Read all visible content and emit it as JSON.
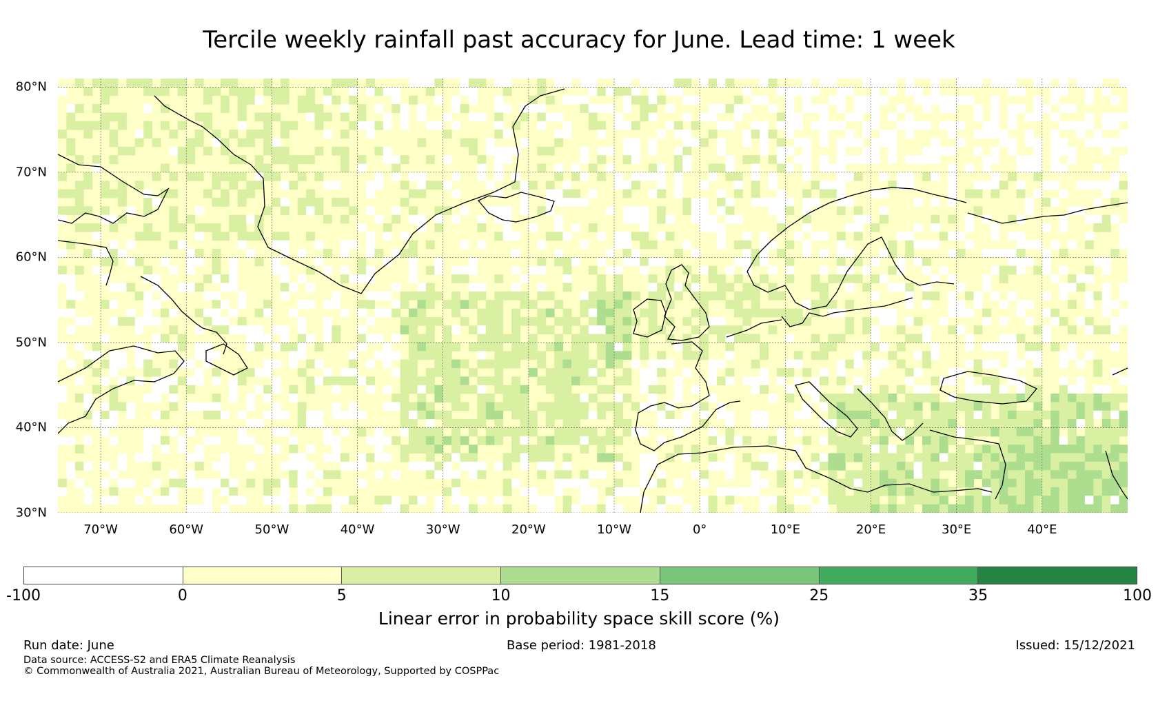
{
  "title": "Tercile weekly rainfall past accuracy for June. Lead time: 1 week",
  "map": {
    "lon_range": [
      -75,
      50
    ],
    "lat_range": [
      30,
      81
    ],
    "lat_labels": [
      "80°N",
      "70°N",
      "60°N",
      "50°N",
      "40°N",
      "30°N"
    ],
    "lat_values": [
      80,
      70,
      60,
      50,
      40,
      30
    ],
    "lon_labels": [
      "70°W",
      "60°W",
      "50°W",
      "40°W",
      "30°W",
      "20°W",
      "10°W",
      "0°",
      "10°E",
      "20°E",
      "30°E",
      "40°E"
    ],
    "lon_values": [
      -70,
      -60,
      -50,
      -40,
      -30,
      -20,
      -10,
      0,
      10,
      20,
      30,
      40
    ]
  },
  "colorbar": {
    "label": "Linear error in probability space skill score (%)",
    "ticks": [
      "-100",
      "0",
      "5",
      "10",
      "15",
      "25",
      "35",
      "100"
    ],
    "colors": [
      "#ffffff",
      "#ffffc8",
      "#d9f0a3",
      "#addd8e",
      "#78c679",
      "#41ab5d",
      "#238443"
    ]
  },
  "footer": {
    "run_date": "Run date: June",
    "base_period": "Base period: 1981-2018",
    "issued": "Issued: 15/12/2021",
    "data_source": "Data source: ACCESS-S2 and ERA5 Climate Reanalysis",
    "copyright": "© Commonwealth of Australia 2021, Australian Bureau of Meteorology, Supported by COSPPac"
  }
}
